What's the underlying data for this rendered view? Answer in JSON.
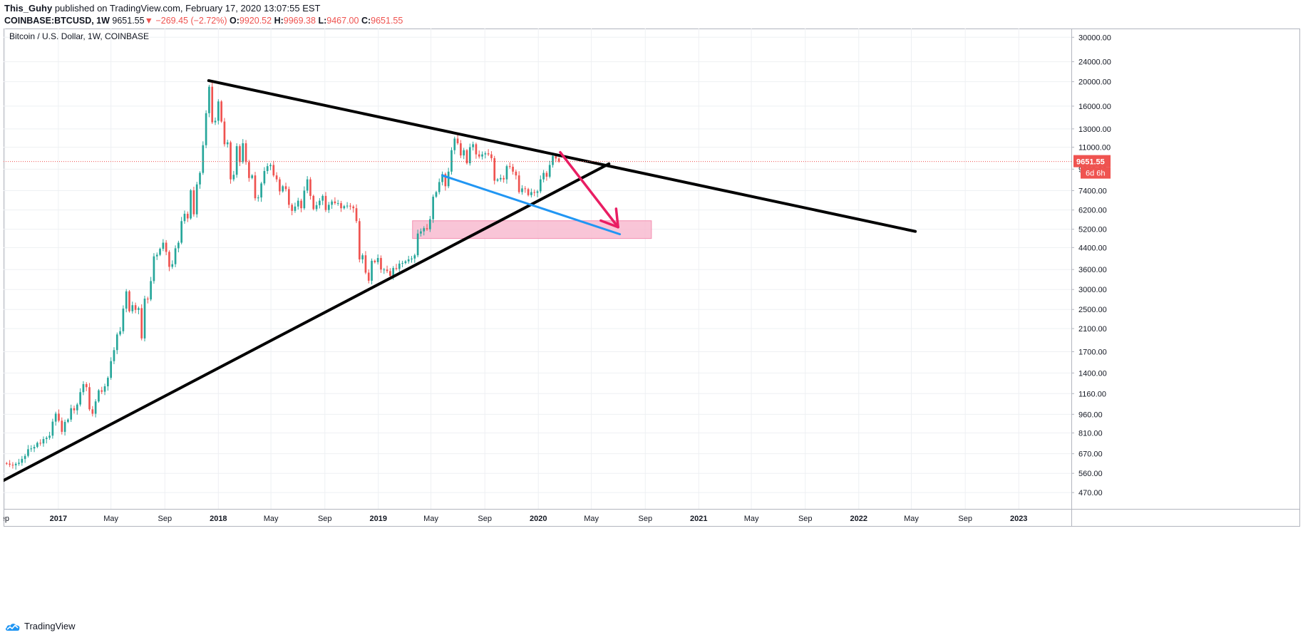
{
  "header": {
    "user": "This_Guhy",
    "published": "published on TradingView.com, February 17, 2020 13:07:55 EST",
    "symbol": "COINBASE:BTCUSD, 1W",
    "last": "9651.55",
    "change": "−269.45 (−2.72%)",
    "o_label": "O:",
    "o_value": "9920.52",
    "h_label": "H:",
    "h_value": "9969.38",
    "l_label": "L:",
    "l_value": "9467.00",
    "c_label": "C:",
    "c_value": "9651.55"
  },
  "footer": {
    "brand": "TradingView",
    "logo_icon": "tradingview-cloud-icon"
  },
  "colors": {
    "up": "#26a69a",
    "down": "#ef5350",
    "trendline": "#000000",
    "channel": "#2196f3",
    "arrow": "#e91e63",
    "zone": "#f8bbd0",
    "price_line": "#ef5350"
  },
  "chart_data": {
    "type": "candlestick",
    "title": "Bitcoin / U.S. Dollar, 1W, COINBASE",
    "x_axis": {
      "type": "time",
      "range": [
        "2016-08-29",
        "2023-05-01"
      ],
      "ticks": [
        {
          "label": "ep",
          "date": "2016-09-01"
        },
        {
          "label": "2017",
          "date": "2017-01-01"
        },
        {
          "label": "May",
          "date": "2017-05-01"
        },
        {
          "label": "Sep",
          "date": "2017-09-01"
        },
        {
          "label": "2018",
          "date": "2018-01-01"
        },
        {
          "label": "May",
          "date": "2018-05-01"
        },
        {
          "label": "Sep",
          "date": "2018-09-01"
        },
        {
          "label": "2019",
          "date": "2019-01-01"
        },
        {
          "label": "May",
          "date": "2019-05-01"
        },
        {
          "label": "Sep",
          "date": "2019-09-01"
        },
        {
          "label": "2020",
          "date": "2020-01-01"
        },
        {
          "label": "May",
          "date": "2020-05-01"
        },
        {
          "label": "Sep",
          "date": "2020-09-01"
        },
        {
          "label": "2021",
          "date": "2021-01-01"
        },
        {
          "label": "May",
          "date": "2021-05-01"
        },
        {
          "label": "Sep",
          "date": "2021-09-01"
        },
        {
          "label": "2022",
          "date": "2022-01-01"
        },
        {
          "label": "May",
          "date": "2022-05-01"
        },
        {
          "label": "Sep",
          "date": "2022-09-01"
        },
        {
          "label": "2023",
          "date": "2023-01-01"
        }
      ]
    },
    "y_axis": {
      "scale": "log",
      "range": [
        405,
        32500
      ],
      "ticks": [
        "30000.00",
        "24000.00",
        "20000.00",
        "16000.00",
        "13000.00",
        "11000.00",
        "9000.00",
        "7400.00",
        "6200.00",
        "5200.00",
        "4400.00",
        "3600.00",
        "3000.00",
        "2500.00",
        "2100.00",
        "1700.00",
        "1400.00",
        "1160.00",
        "960.00",
        "810.00",
        "670.00",
        "560.00",
        "470.00"
      ]
    },
    "grid": true,
    "price_label": {
      "value": 9651.55,
      "text": "9651.55",
      "countdown": "6d 6h"
    },
    "series": [
      {
        "type": "candlestick",
        "points": [
          [
            "2016-09-05",
            612
          ],
          [
            "2016-09-12",
            606
          ],
          [
            "2016-09-19",
            603
          ],
          [
            "2016-09-26",
            611
          ],
          [
            "2016-10-03",
            617
          ],
          [
            "2016-10-10",
            639
          ],
          [
            "2016-10-17",
            657
          ],
          [
            "2016-10-24",
            698
          ],
          [
            "2016-10-31",
            703
          ],
          [
            "2016-11-07",
            713
          ],
          [
            "2016-11-14",
            740
          ],
          [
            "2016-11-21",
            736
          ],
          [
            "2016-11-28",
            766
          ],
          [
            "2016-12-05",
            775
          ],
          [
            "2016-12-12",
            790
          ],
          [
            "2016-12-19",
            898
          ],
          [
            "2016-12-26",
            966
          ],
          [
            "2017-01-02",
            906
          ],
          [
            "2017-01-09",
            818
          ],
          [
            "2017-01-16",
            896
          ],
          [
            "2017-01-23",
            915
          ],
          [
            "2017-01-30",
            1015
          ],
          [
            "2017-02-06",
            996
          ],
          [
            "2017-02-13",
            1050
          ],
          [
            "2017-02-20",
            1175
          ],
          [
            "2017-02-27",
            1265
          ],
          [
            "2017-03-06",
            1230
          ],
          [
            "2017-03-13",
            1005
          ],
          [
            "2017-03-20",
            965
          ],
          [
            "2017-03-27",
            1080
          ],
          [
            "2017-04-03",
            1195
          ],
          [
            "2017-04-10",
            1180
          ],
          [
            "2017-04-17",
            1240
          ],
          [
            "2017-04-24",
            1340
          ],
          [
            "2017-05-01",
            1560
          ],
          [
            "2017-05-08",
            1725
          ],
          [
            "2017-05-15",
            1990
          ],
          [
            "2017-05-22",
            2050
          ],
          [
            "2017-05-29",
            2520
          ],
          [
            "2017-06-05",
            2950
          ],
          [
            "2017-06-12",
            2460
          ],
          [
            "2017-06-19",
            2600
          ],
          [
            "2017-06-26",
            2490
          ],
          [
            "2017-07-03",
            2530
          ],
          [
            "2017-07-10",
            1920
          ],
          [
            "2017-07-17",
            2760
          ],
          [
            "2017-07-24",
            2740
          ],
          [
            "2017-07-31",
            3240
          ],
          [
            "2017-08-07",
            4060
          ],
          [
            "2017-08-14",
            4120
          ],
          [
            "2017-08-21",
            4350
          ],
          [
            "2017-08-28",
            4600
          ],
          [
            "2017-09-04",
            4230
          ],
          [
            "2017-09-11",
            3690
          ],
          [
            "2017-09-18",
            3780
          ],
          [
            "2017-09-25",
            4370
          ],
          [
            "2017-10-02",
            4600
          ],
          [
            "2017-10-09",
            5600
          ],
          [
            "2017-10-16",
            5990
          ],
          [
            "2017-10-23",
            5740
          ],
          [
            "2017-10-30",
            7420
          ],
          [
            "2017-11-06",
            5960
          ],
          [
            "2017-11-13",
            7830
          ],
          [
            "2017-11-20",
            8700
          ],
          [
            "2017-11-27",
            11200
          ],
          [
            "2017-12-04",
            15000
          ],
          [
            "2017-12-11",
            19100
          ],
          [
            "2017-12-18",
            13800
          ],
          [
            "2017-12-25",
            14000
          ],
          [
            "2018-01-01",
            16700
          ],
          [
            "2018-01-08",
            13900
          ],
          [
            "2018-01-15",
            11300
          ],
          [
            "2018-01-22",
            11500
          ],
          [
            "2018-01-29",
            8200
          ],
          [
            "2018-02-05",
            8550
          ],
          [
            "2018-02-12",
            11100
          ],
          [
            "2018-02-19",
            9600
          ],
          [
            "2018-02-26",
            11400
          ],
          [
            "2018-03-05",
            9600
          ],
          [
            "2018-03-12",
            8300
          ],
          [
            "2018-03-19",
            8500
          ],
          [
            "2018-03-26",
            6900
          ],
          [
            "2018-04-02",
            6950
          ],
          [
            "2018-04-09",
            7900
          ],
          [
            "2018-04-16",
            8850
          ],
          [
            "2018-04-23",
            9250
          ],
          [
            "2018-04-30",
            9350
          ],
          [
            "2018-05-07",
            8500
          ],
          [
            "2018-05-14",
            8200
          ],
          [
            "2018-05-21",
            7350
          ],
          [
            "2018-05-28",
            7700
          ],
          [
            "2018-06-04",
            7500
          ],
          [
            "2018-06-11",
            6500
          ],
          [
            "2018-06-18",
            6150
          ],
          [
            "2018-06-25",
            6400
          ],
          [
            "2018-07-02",
            6750
          ],
          [
            "2018-07-09",
            6300
          ],
          [
            "2018-07-16",
            7400
          ],
          [
            "2018-07-23",
            8200
          ],
          [
            "2018-07-30",
            7050
          ],
          [
            "2018-08-06",
            6250
          ],
          [
            "2018-08-13",
            6480
          ],
          [
            "2018-08-20",
            6750
          ],
          [
            "2018-08-27",
            7050
          ],
          [
            "2018-09-03",
            6200
          ],
          [
            "2018-09-10",
            6500
          ],
          [
            "2018-09-17",
            6700
          ],
          [
            "2018-09-24",
            6600
          ],
          [
            "2018-10-01",
            6600
          ],
          [
            "2018-10-08",
            6300
          ],
          [
            "2018-10-15",
            6420
          ],
          [
            "2018-10-22",
            6450
          ],
          [
            "2018-10-29",
            6400
          ],
          [
            "2018-11-05",
            6300
          ],
          [
            "2018-11-12",
            5600
          ],
          [
            "2018-11-19",
            3950
          ],
          [
            "2018-11-26",
            4100
          ],
          [
            "2018-12-03",
            3500
          ],
          [
            "2018-12-10",
            3250
          ],
          [
            "2018-12-17",
            3900
          ],
          [
            "2018-12-24",
            3850
          ],
          [
            "2018-12-31",
            4000
          ],
          [
            "2019-01-07",
            3600
          ],
          [
            "2019-01-14",
            3600
          ],
          [
            "2019-01-21",
            3550
          ],
          [
            "2019-01-28",
            3400
          ],
          [
            "2019-02-04",
            3650
          ],
          [
            "2019-02-11",
            3620
          ],
          [
            "2019-02-18",
            3800
          ],
          [
            "2019-02-25",
            3820
          ],
          [
            "2019-03-04",
            3880
          ],
          [
            "2019-03-11",
            3950
          ],
          [
            "2019-03-18",
            3980
          ],
          [
            "2019-03-25",
            4100
          ],
          [
            "2019-04-01",
            5000
          ],
          [
            "2019-04-08",
            5100
          ],
          [
            "2019-04-15",
            5250
          ],
          [
            "2019-04-22",
            5200
          ],
          [
            "2019-04-29",
            5700
          ],
          [
            "2019-05-06",
            7000
          ],
          [
            "2019-05-13",
            7300
          ],
          [
            "2019-05-20",
            8000
          ],
          [
            "2019-05-27",
            8600
          ],
          [
            "2019-06-03",
            7700
          ],
          [
            "2019-06-10",
            8800
          ],
          [
            "2019-06-17",
            10700
          ],
          [
            "2019-06-24",
            11900
          ],
          [
            "2019-07-01",
            11400
          ],
          [
            "2019-07-08",
            10200
          ],
          [
            "2019-07-15",
            10700
          ],
          [
            "2019-07-22",
            9500
          ],
          [
            "2019-07-29",
            11000
          ],
          [
            "2019-08-05",
            11300
          ],
          [
            "2019-08-12",
            10300
          ],
          [
            "2019-08-19",
            10100
          ],
          [
            "2019-08-26",
            10300
          ],
          [
            "2019-09-02",
            10400
          ],
          [
            "2019-09-09",
            10300
          ],
          [
            "2019-09-16",
            9950
          ],
          [
            "2019-09-23",
            8100
          ],
          [
            "2019-09-30",
            8200
          ],
          [
            "2019-10-07",
            8300
          ],
          [
            "2019-10-14",
            8200
          ],
          [
            "2019-10-21",
            9250
          ],
          [
            "2019-10-28",
            9200
          ],
          [
            "2019-11-04",
            8800
          ],
          [
            "2019-11-11",
            8500
          ],
          [
            "2019-11-18",
            7300
          ],
          [
            "2019-11-25",
            7550
          ],
          [
            "2019-12-02",
            7500
          ],
          [
            "2019-12-09",
            7100
          ],
          [
            "2019-12-16",
            7300
          ],
          [
            "2019-12-23",
            7250
          ],
          [
            "2019-12-30",
            7350
          ],
          [
            "2020-01-06",
            8200
          ],
          [
            "2020-01-13",
            8700
          ],
          [
            "2020-01-20",
            8400
          ],
          [
            "2020-01-27",
            9350
          ],
          [
            "2020-02-03",
            10150
          ],
          [
            "2020-02-10",
            9920
          ],
          [
            "2020-02-17",
            9651.55
          ]
        ]
      }
    ],
    "annotations": [
      {
        "type": "trend_line",
        "color": "#000000",
        "from": [
          "2016-08-29",
          525
        ],
        "to": [
          "2020-06-10",
          9450
        ]
      },
      {
        "type": "trend_line",
        "color": "#000000",
        "from": [
          "2017-12-10",
          20200
        ],
        "to": [
          "2022-05-10",
          5100
        ]
      },
      {
        "type": "trend_line",
        "color": "#2196f3",
        "from": [
          "2019-05-27",
          8500
        ],
        "to": [
          "2020-07-05",
          4970
        ]
      },
      {
        "type": "rectangle",
        "color": "#f8bbd0",
        "from": [
          "2019-03-20",
          5620
        ],
        "to": [
          "2020-09-15",
          4780
        ]
      },
      {
        "type": "arrow",
        "color": "#e91e63",
        "from": [
          "2020-02-20",
          10500
        ],
        "to": [
          "2020-07-01",
          5300
        ]
      },
      {
        "type": "horizontal_line",
        "color": "#ef5350",
        "value": 9651.55
      }
    ]
  }
}
